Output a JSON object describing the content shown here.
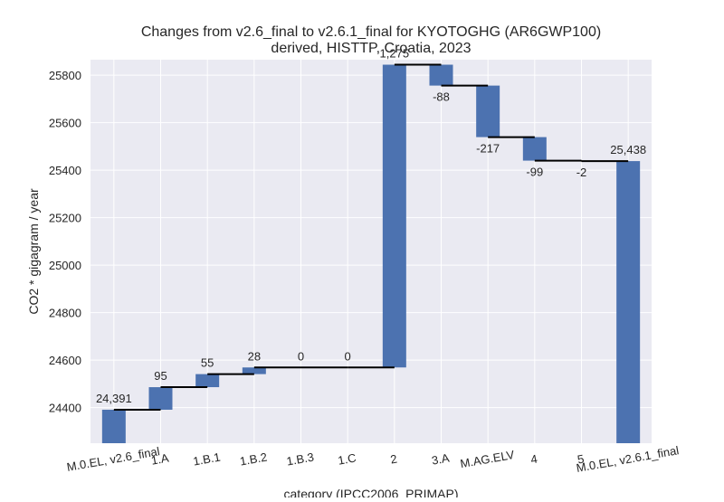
{
  "chart_data": {
    "type": "bar",
    "subtype": "waterfall",
    "title": "Changes from v2.6_final to v2.6.1_final for KYOTOGHG (AR6GWP100)",
    "subtitle": "derived, HISTTP, Croatia, 2023",
    "xlabel": "category (IPCC2006_PRIMAP)",
    "ylabel": "CO2 * gigagram / year",
    "ylim": [
      24250,
      25865
    ],
    "yticks": [
      24400,
      24600,
      24800,
      25000,
      25200,
      25400,
      25600,
      25800
    ],
    "ytick_labels": [
      "24400",
      "24600",
      "24800",
      "25000",
      "25200",
      "25400",
      "25600",
      "25800"
    ],
    "categories": [
      "M.0.EL, v2.6_final",
      "1.A",
      "1.B.1",
      "1.B.2",
      "1.B.3",
      "1.C",
      "2",
      "3.A",
      "M.AG.ELV",
      "4",
      "5",
      "M.0.EL, v2.6.1_final"
    ],
    "values": [
      24391,
      95,
      55,
      28,
      0,
      0,
      1275,
      -88,
      -217,
      -99,
      -2,
      25438
    ],
    "bar_kinds": [
      "total",
      "delta",
      "delta",
      "delta",
      "delta",
      "delta",
      "delta",
      "delta",
      "delta",
      "delta",
      "delta",
      "total"
    ],
    "data_labels": [
      "24,391",
      "95",
      "55",
      "28",
      "0",
      "0",
      "1,275",
      "-88",
      "-217",
      "-99",
      "-2",
      "25,438"
    ],
    "bar_color": "#4c72b0",
    "connector_color": "#000000",
    "plot_background": "#eaeaf2",
    "grid_color": "#ffffff",
    "grid": true,
    "legend": "none"
  }
}
